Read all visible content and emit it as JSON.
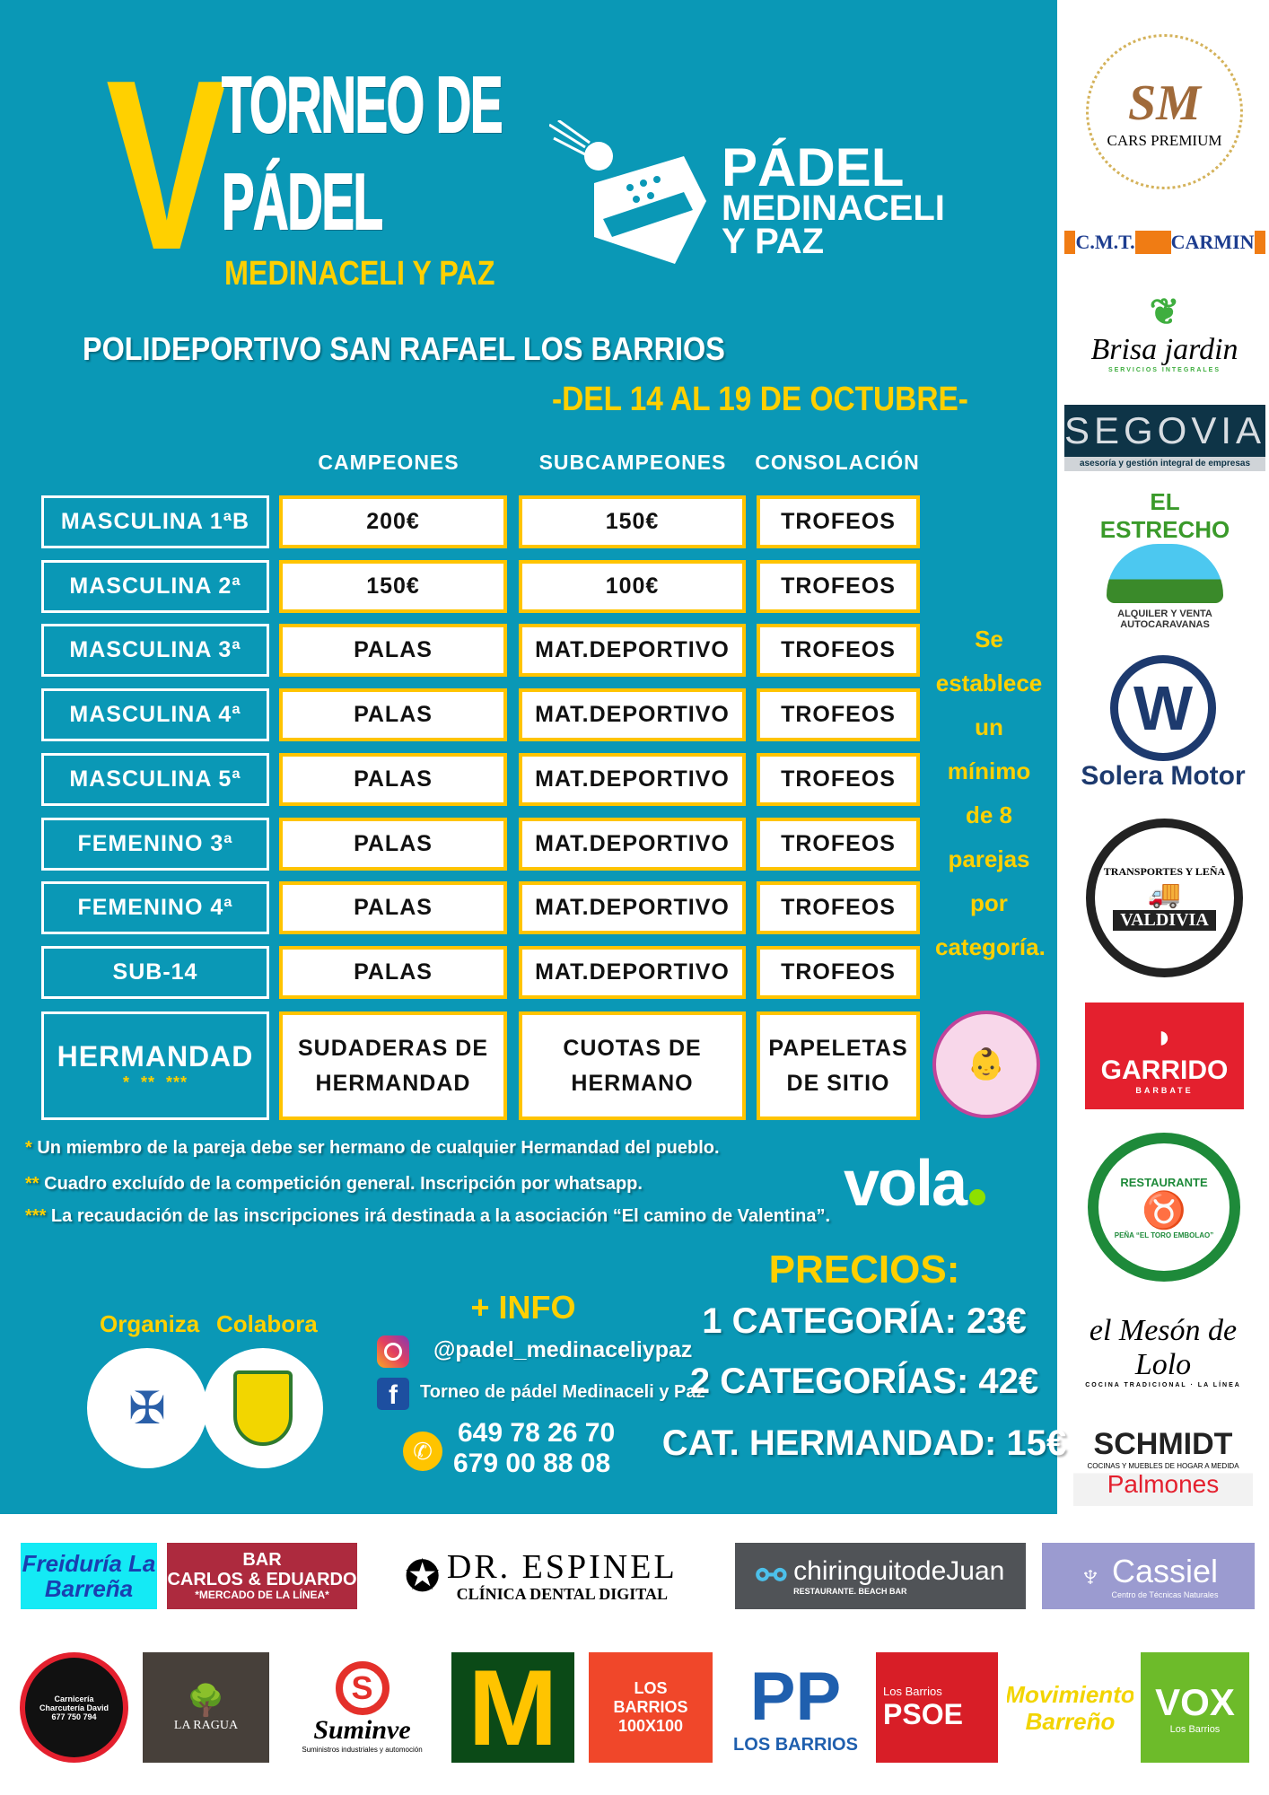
{
  "header": {
    "roman": "V",
    "line1": "TORNEO DE",
    "line2": "PÁDEL",
    "line3": "MEDINACELI Y PAZ",
    "brand": {
      "l1": "PÁDEL",
      "l2": "MEDINACELI",
      "l3": "Y PAZ"
    },
    "venue": "POLIDEPORTIVO SAN RAFAEL LOS BARRIOS",
    "dates": "-DEL 14 AL 19 DE OCTUBRE-"
  },
  "table": {
    "columns": [
      "CAMPEONES",
      "SUBCAMPEONES",
      "CONSOLACIÓN"
    ],
    "rows": [
      {
        "label": "MASCULINA 1ªB",
        "c1": "200€",
        "c2": "150€",
        "c3": "TROFEOS"
      },
      {
        "label": "MASCULINA 2ª",
        "c1": "150€",
        "c2": "100€",
        "c3": "TROFEOS"
      },
      {
        "label": "MASCULINA 3ª",
        "c1": "PALAS",
        "c2": "MAT.DEPORTIVO",
        "c3": "TROFEOS"
      },
      {
        "label": "MASCULINA 4ª",
        "c1": "PALAS",
        "c2": "MAT.DEPORTIVO",
        "c3": "TROFEOS"
      },
      {
        "label": "MASCULINA 5ª",
        "c1": "PALAS",
        "c2": "MAT.DEPORTIVO",
        "c3": "TROFEOS"
      },
      {
        "label": "FEMENINO 3ª",
        "c1": "PALAS",
        "c2": "MAT.DEPORTIVO",
        "c3": "TROFEOS"
      },
      {
        "label": "FEMENINO 4ª",
        "c1": "PALAS",
        "c2": "MAT.DEPORTIVO",
        "c3": "TROFEOS"
      },
      {
        "label": "SUB-14",
        "c1": "PALAS",
        "c2": "MAT.DEPORTIVO",
        "c3": "TROFEOS"
      }
    ],
    "hermandad": {
      "label": "HERMANDAD",
      "stars": "*  **  ***",
      "c1a": "SUDADERAS DE",
      "c1b": "HERMANDAD",
      "c2a": "CUOTAS DE",
      "c2b": "HERMANO",
      "c3a": "PAPELETAS",
      "c3b": "DE SITIO"
    },
    "side_note": [
      "Se",
      "establece",
      "un mínimo",
      "de 8",
      "parejas",
      "por",
      "categoría."
    ]
  },
  "association_logo": "Asociación El camino de Valentina",
  "footnotes": [
    {
      "stars": "*",
      "text": " Un miembro de la pareja debe ser hermano de cualquier Hermandad del pueblo."
    },
    {
      "stars": "**",
      "text": " Cuadro excluído de la competición general. Inscripción por whatsapp."
    },
    {
      "stars": "***",
      "text": " La recaudación de las inscripciones irá destinada a la asociación “El camino de Valentina”."
    }
  ],
  "vola": "vola",
  "organiza": "Organiza",
  "colabora": "Colabora",
  "info": {
    "title": "+ INFO",
    "instagram": "@padel_medinaceliypaz",
    "facebook": "Torneo de pádel Medinaceli y Paz",
    "phone1": "649 78 26 70",
    "phone2": "679 00 88 08"
  },
  "prices": {
    "title": "PRECIOS:",
    "p1": "1 CATEGORÍA: 23€",
    "p2": "2 CATEGORÍAS: 42€",
    "p3": "CAT. HERMANDAD: 15€"
  },
  "sponsors_side": {
    "sm": "SM",
    "sm_sub": "CARS PREMIUM",
    "cmt": "C.M.T.",
    "carmin": "CARMIN",
    "brisa": "Brisa jardin",
    "brisa_sub": "SERVICIOS INTEGRALES",
    "segovia": "SEGOVIA",
    "segovia_sub": "asesoría y gestión integral de empresas",
    "estrecho": "EL ESTRECHO",
    "estrecho_sub": "ALQUILER Y VENTA AUTOCARAVANAS",
    "solera": "Solera Motor",
    "valdivia": "VALDIVIA",
    "valdivia_ring": "TRANSPORTES Y LEÑA",
    "garrido": "GARRIDO",
    "garrido_sub": "BARBATE",
    "toro": "RESTAURANTE",
    "toro_sub": "PEÑA “EL TORO EMBOLAO”",
    "lolo": "el Mesón de Lolo",
    "lolo_sub": "COCINA TRADICIONAL · LA LÍNEA",
    "schmidt": "SCHMIDT",
    "schmidt_sub": "COCINAS Y MUEBLES DE HOGAR A MEDIDA",
    "palmones": "Palmones"
  },
  "sponsors_bottom": {
    "freiduria": "Freiduría La Barreña",
    "bar": "BAR",
    "bar_name": "CARLOS & EDUARDO",
    "bar_sub": "*MERCADO DE LA LÍNEA*",
    "espinel": "DR. ESPINEL",
    "espinel_sub": "CLÍNICA DENTAL DIGITAL",
    "chiringuito": "chiringuitodeJuan",
    "chiringuito_sub": "RESTAURANTE. BEACH BAR",
    "cassiel": "Cassiel",
    "cassiel_sub": "Centro de Técnicas Naturales",
    "carniceria": "Carnicería Charcutería David 677 750 794",
    "laragua": "LA RAGUA",
    "suminve": "Suminve",
    "suminve_sub": "Suministros industriales y automoción",
    "mcd": "M",
    "lb100": "LOS BARRIOS 100X100",
    "pp": "PP",
    "pp_sub": "LOS BARRIOS",
    "psoe_top": "Los Barrios",
    "psoe": "PSOE",
    "movimiento": "Movimiento Barreño",
    "vox": "VOX",
    "vox_sub": "Los Barrios"
  },
  "colors": {
    "panel": "#0a98b6",
    "yellow": "#ffd000",
    "cell_border": "#ffc400"
  }
}
